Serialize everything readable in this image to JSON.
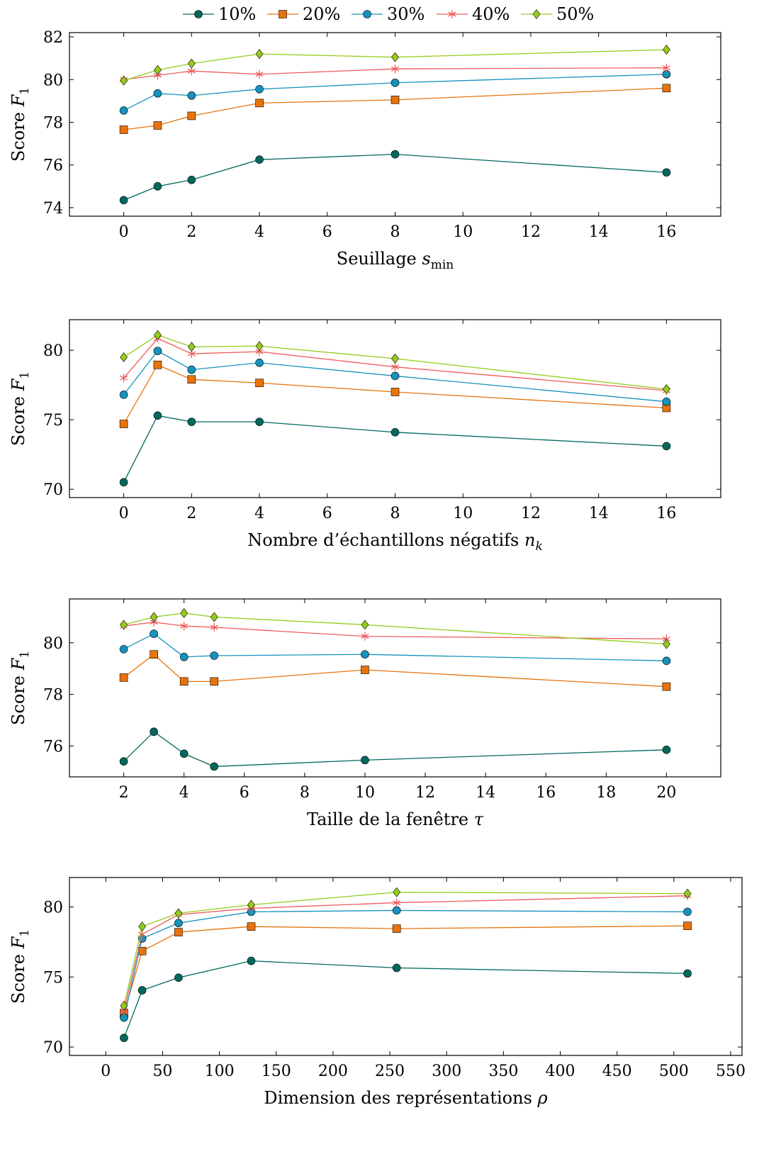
{
  "legend": {
    "position": "top-center",
    "entries": [
      {
        "name": "10%",
        "color": "#00695c",
        "marker": "circle"
      },
      {
        "name": "20%",
        "color": "#e8730c",
        "marker": "square"
      },
      {
        "name": "30%",
        "color": "#1593be",
        "marker": "circle"
      },
      {
        "name": "40%",
        "color": "#f05a5a",
        "marker": "star"
      },
      {
        "name": "50%",
        "color": "#94cc1a",
        "marker": "diamond"
      }
    ]
  },
  "chart_data": [
    {
      "type": "line",
      "xlabel": "Seuillage s_min",
      "ylabel": "Score F1",
      "xlim": [
        -1.6,
        17.6
      ],
      "ylim": [
        73.6,
        82.2
      ],
      "xticks": [
        0,
        2,
        4,
        6,
        8,
        10,
        12,
        14,
        16
      ],
      "yticks": [
        74,
        76,
        78,
        80,
        82
      ],
      "grid": false,
      "x": [
        0,
        1,
        2,
        4,
        8,
        16
      ],
      "series": [
        {
          "name": "10%",
          "values": [
            74.35,
            75.0,
            75.3,
            76.25,
            76.5,
            75.65
          ]
        },
        {
          "name": "20%",
          "values": [
            77.65,
            77.85,
            78.3,
            78.9,
            79.05,
            79.6
          ]
        },
        {
          "name": "30%",
          "values": [
            78.55,
            79.35,
            79.25,
            79.55,
            79.85,
            80.25
          ]
        },
        {
          "name": "40%",
          "values": [
            80.0,
            80.2,
            80.4,
            80.25,
            80.5,
            80.55
          ]
        },
        {
          "name": "50%",
          "values": [
            79.95,
            80.45,
            80.75,
            81.2,
            81.05,
            81.4
          ]
        }
      ]
    },
    {
      "type": "line",
      "xlabel": "Nombre d’échantillons négatifs n_k",
      "ylabel": "Score F1",
      "xlim": [
        -1.6,
        17.6
      ],
      "ylim": [
        69.4,
        82.2
      ],
      "xticks": [
        0,
        2,
        4,
        6,
        8,
        10,
        12,
        14,
        16
      ],
      "yticks": [
        70,
        75,
        80
      ],
      "grid": false,
      "x": [
        0,
        1,
        2,
        4,
        8,
        16
      ],
      "series": [
        {
          "name": "10%",
          "values": [
            70.5,
            75.3,
            74.85,
            74.85,
            74.1,
            73.1
          ]
        },
        {
          "name": "20%",
          "values": [
            74.7,
            78.95,
            77.9,
            77.65,
            77.0,
            75.85
          ]
        },
        {
          "name": "30%",
          "values": [
            76.8,
            79.95,
            78.6,
            79.1,
            78.15,
            76.3
          ]
        },
        {
          "name": "40%",
          "values": [
            78.0,
            80.85,
            79.75,
            79.9,
            78.8,
            77.1
          ]
        },
        {
          "name": "50%",
          "values": [
            79.5,
            81.1,
            80.25,
            80.3,
            79.4,
            77.2
          ]
        }
      ]
    },
    {
      "type": "line",
      "xlabel": "Taille de la fenêtre τ",
      "ylabel": "Score F1",
      "xlim": [
        0.2,
        21.8
      ],
      "ylim": [
        74.8,
        81.7
      ],
      "xticks": [
        2,
        4,
        6,
        8,
        10,
        12,
        14,
        16,
        18,
        20
      ],
      "yticks": [
        76,
        78,
        80
      ],
      "grid": false,
      "x": [
        2,
        3,
        4,
        5,
        10,
        20
      ],
      "series": [
        {
          "name": "10%",
          "values": [
            75.4,
            76.55,
            75.7,
            75.2,
            75.45,
            75.85
          ]
        },
        {
          "name": "20%",
          "values": [
            78.65,
            79.55,
            78.5,
            78.5,
            78.95,
            78.3
          ]
        },
        {
          "name": "30%",
          "values": [
            79.75,
            80.35,
            79.45,
            79.5,
            79.55,
            79.3
          ]
        },
        {
          "name": "40%",
          "values": [
            80.65,
            80.8,
            80.65,
            80.6,
            80.25,
            80.15
          ]
        },
        {
          "name": "50%",
          "values": [
            80.7,
            81.0,
            81.15,
            81.0,
            80.7,
            79.95
          ]
        }
      ]
    },
    {
      "type": "line",
      "xlabel": "Dimension des représentations ρ",
      "ylabel": "Score F1",
      "xlim": [
        -32,
        560
      ],
      "ylim": [
        69.4,
        82.1
      ],
      "xticks": [
        0,
        50,
        100,
        150,
        200,
        250,
        300,
        350,
        400,
        450,
        500,
        550
      ],
      "yticks": [
        70,
        75,
        80
      ],
      "grid": false,
      "x": [
        16,
        32,
        64,
        128,
        256,
        512
      ],
      "series": [
        {
          "name": "10%",
          "values": [
            70.65,
            74.05,
            74.95,
            76.15,
            75.65,
            75.25
          ]
        },
        {
          "name": "20%",
          "values": [
            72.4,
            76.85,
            78.2,
            78.6,
            78.45,
            78.65
          ]
        },
        {
          "name": "30%",
          "values": [
            72.1,
            77.75,
            78.85,
            79.65,
            79.75,
            79.65
          ]
        },
        {
          "name": "40%",
          "values": [
            72.6,
            78.05,
            79.45,
            79.9,
            80.3,
            80.8
          ]
        },
        {
          "name": "50%",
          "values": [
            72.95,
            78.6,
            79.55,
            80.15,
            81.05,
            80.95
          ]
        }
      ]
    }
  ]
}
